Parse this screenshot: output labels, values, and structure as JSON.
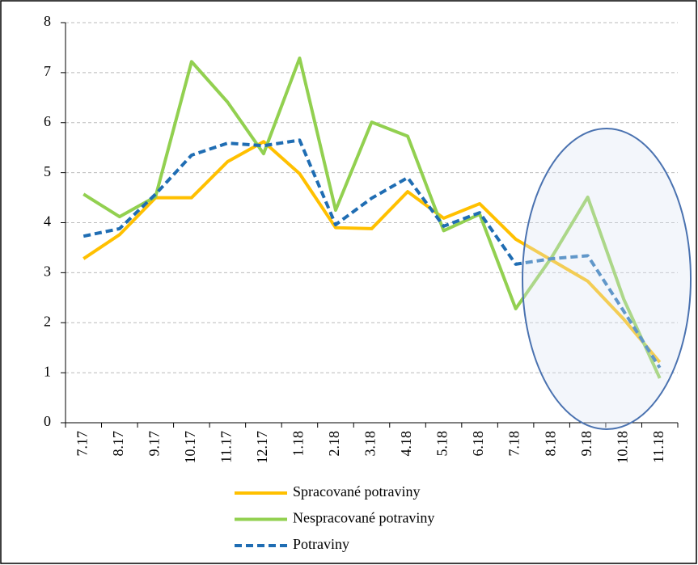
{
  "chart_data": {
    "type": "line",
    "categories": [
      "7.17",
      "8.17",
      "9.17",
      "10.17",
      "11.17",
      "12.17",
      "1.18",
      "2.18",
      "3.18",
      "4.18",
      "5.18",
      "6.18",
      "7.18",
      "8.18",
      "9.18",
      "10.18",
      "11.18"
    ],
    "series": [
      {
        "name": "Spracované potraviny",
        "color": "#ffc000",
        "dash": false,
        "values": [
          3.28,
          3.76,
          4.5,
          4.5,
          5.22,
          5.62,
          4.98,
          3.9,
          3.88,
          4.62,
          4.09,
          4.38,
          3.67,
          3.25,
          2.83,
          2.07,
          1.21
        ]
      },
      {
        "name": "Nespracované potraviny",
        "color": "#92d050",
        "dash": false,
        "values": [
          4.57,
          4.12,
          4.52,
          7.22,
          6.41,
          5.38,
          7.29,
          4.25,
          6.01,
          5.73,
          3.84,
          4.17,
          2.28,
          3.31,
          4.51,
          2.47,
          0.89
        ]
      },
      {
        "name": "Potraviny",
        "color": "#1f6db3",
        "dash": true,
        "values": [
          3.73,
          3.88,
          4.57,
          5.35,
          5.59,
          5.54,
          5.65,
          3.96,
          4.49,
          4.9,
          3.93,
          4.2,
          3.17,
          3.28,
          3.34,
          2.23,
          1.1
        ]
      }
    ],
    "ylim": [
      0,
      8
    ],
    "yticks": [
      0,
      1,
      2,
      3,
      4,
      5,
      6,
      7,
      8
    ],
    "grid": true,
    "legend": "bottom"
  }
}
